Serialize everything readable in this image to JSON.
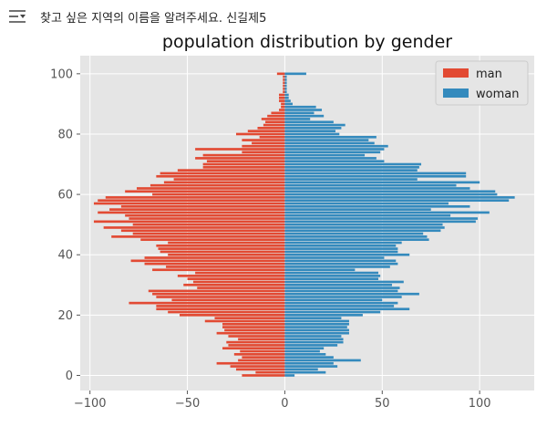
{
  "prompt": {
    "icon": "filter-sliders-icon",
    "text": "찾고 싶은 지역의 이름을 알려주세요. 신길제5"
  },
  "chart_data": {
    "type": "bar",
    "orientation": "horizontal",
    "title": "population distribution by gender",
    "xlabel": "",
    "ylabel": "",
    "xlim": [
      -105,
      128
    ],
    "ylim": [
      -5,
      106
    ],
    "xticks": [
      -100,
      -50,
      0,
      50,
      100
    ],
    "yticks": [
      0,
      20,
      40,
      60,
      80,
      100
    ],
    "grid": true,
    "legend": "top-right",
    "y": [
      0,
      1,
      2,
      3,
      4,
      5,
      6,
      7,
      8,
      9,
      10,
      11,
      12,
      13,
      14,
      15,
      16,
      17,
      18,
      19,
      20,
      21,
      22,
      23,
      24,
      25,
      26,
      27,
      28,
      29,
      30,
      31,
      32,
      33,
      34,
      35,
      36,
      37,
      38,
      39,
      40,
      41,
      42,
      43,
      44,
      45,
      46,
      47,
      48,
      49,
      50,
      51,
      52,
      53,
      54,
      55,
      56,
      57,
      58,
      59,
      60,
      61,
      62,
      63,
      64,
      65,
      66,
      67,
      68,
      69,
      70,
      71,
      72,
      73,
      74,
      75,
      76,
      77,
      78,
      79,
      80,
      81,
      82,
      83,
      84,
      85,
      86,
      87,
      88,
      89,
      90,
      91,
      92,
      93,
      94,
      95,
      96,
      97,
      98,
      99,
      100,
      101
    ],
    "series": [
      {
        "name": "man",
        "color": "#E24A33",
        "values": [
          -22,
          -15,
          -25,
          -28,
          -35,
          -24,
          -22,
          -26,
          -23,
          -32,
          -29,
          -30,
          -24,
          -29,
          -35,
          -31,
          -32,
          -32,
          -41,
          -36,
          -54,
          -60,
          -66,
          -66,
          -80,
          -58,
          -66,
          -68,
          -70,
          -45,
          -52,
          -47,
          -50,
          -55,
          -46,
          -68,
          -61,
          -72,
          -79,
          -72,
          -60,
          -64,
          -65,
          -66,
          -60,
          -74,
          -89,
          -78,
          -84,
          -93,
          -78,
          -98,
          -80,
          -82,
          -96,
          -90,
          -84,
          -98,
          -96,
          -92,
          -68,
          -82,
          -76,
          -69,
          -62,
          -57,
          -66,
          -64,
          -55,
          -42,
          -42,
          -40,
          -46,
          -42,
          -22,
          -46,
          -22,
          -17,
          -22,
          -13,
          -25,
          -19,
          -14,
          -11,
          -10,
          -12,
          -9,
          -7,
          -3,
          -2,
          -2,
          -3,
          -3,
          -3,
          -1,
          -1,
          -1,
          -1,
          -1,
          -1,
          -4,
          0
        ]
      },
      {
        "name": "woman",
        "color": "#348ABD",
        "values": [
          5,
          21,
          17,
          27,
          25,
          39,
          25,
          21,
          18,
          20,
          27,
          30,
          30,
          29,
          33,
          33,
          32,
          33,
          33,
          29,
          40,
          49,
          64,
          56,
          58,
          50,
          60,
          69,
          58,
          59,
          55,
          61,
          48,
          49,
          48,
          36,
          54,
          58,
          57,
          51,
          64,
          58,
          58,
          57,
          60,
          74,
          73,
          71,
          80,
          82,
          81,
          98,
          99,
          85,
          105,
          75,
          95,
          84,
          115,
          118,
          109,
          108,
          95,
          88,
          100,
          68,
          93,
          93,
          68,
          69,
          70,
          51,
          47,
          41,
          49,
          51,
          53,
          46,
          43,
          47,
          28,
          26,
          29,
          31,
          25,
          13,
          20,
          15,
          19,
          16,
          4,
          3,
          2,
          2,
          1,
          1,
          1,
          1,
          1,
          1,
          11,
          0
        ]
      }
    ]
  }
}
